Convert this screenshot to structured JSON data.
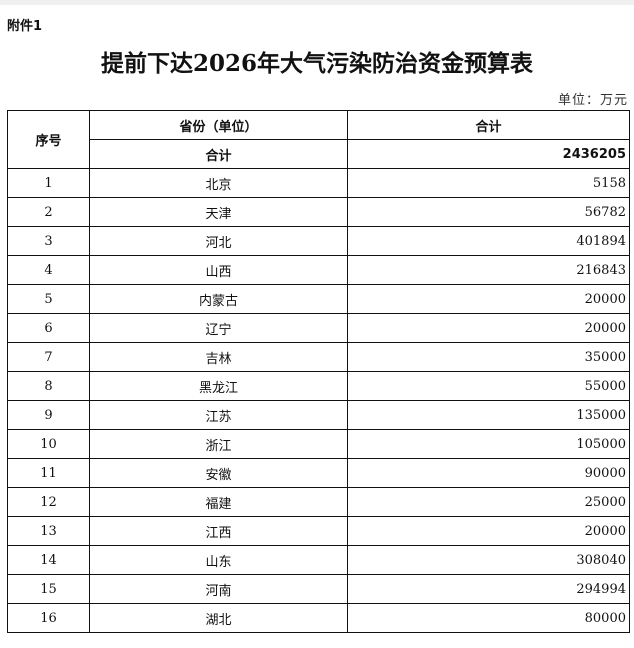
{
  "attachment_label": "附件1",
  "title": "提前下达2026年大气污染防治资金预算表",
  "unit": "单位：万元",
  "table": {
    "headers": {
      "index": "序号",
      "province": "省份（单位）",
      "total": "合计"
    },
    "total_row": {
      "label": "合计",
      "value": "2436205"
    },
    "rows": [
      {
        "index": "1",
        "province": "北京",
        "value": "5158"
      },
      {
        "index": "2",
        "province": "天津",
        "value": "56782"
      },
      {
        "index": "3",
        "province": "河北",
        "value": "401894"
      },
      {
        "index": "4",
        "province": "山西",
        "value": "216843"
      },
      {
        "index": "5",
        "province": "内蒙古",
        "value": "20000"
      },
      {
        "index": "6",
        "province": "辽宁",
        "value": "20000"
      },
      {
        "index": "7",
        "province": "吉林",
        "value": "35000"
      },
      {
        "index": "8",
        "province": "黑龙江",
        "value": "55000"
      },
      {
        "index": "9",
        "province": "江苏",
        "value": "135000"
      },
      {
        "index": "10",
        "province": "浙江",
        "value": "105000"
      },
      {
        "index": "11",
        "province": "安徽",
        "value": "90000"
      },
      {
        "index": "12",
        "province": "福建",
        "value": "25000"
      },
      {
        "index": "13",
        "province": "江西",
        "value": "20000"
      },
      {
        "index": "14",
        "province": "山东",
        "value": "308040"
      },
      {
        "index": "15",
        "province": "河南",
        "value": "294994"
      },
      {
        "index": "16",
        "province": "湖北",
        "value": "80000"
      }
    ]
  }
}
